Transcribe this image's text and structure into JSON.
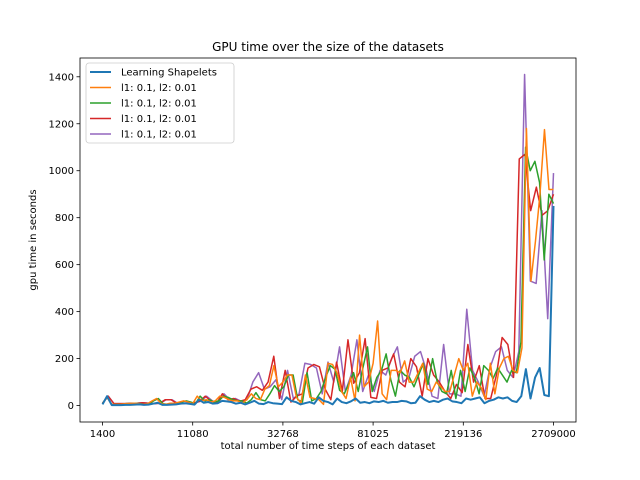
{
  "chart_data": {
    "type": "line",
    "title": "GPU time over the size of the datasets",
    "xlabel": "total number of time steps of each dataset",
    "ylabel": "gpu time in seconds",
    "x_tick_labels": [
      "1400",
      "11080",
      "32768",
      "81025",
      "219136",
      "2709000"
    ],
    "y_ticks": [
      0,
      200,
      400,
      600,
      800,
      1000,
      1200,
      1400
    ],
    "ylim": [
      -70,
      1480
    ],
    "legend_position": "upper-left",
    "grid": false,
    "series": [
      {
        "name": "Learning Shapelets",
        "color": "#1f77b4",
        "values": [
          5,
          40,
          2,
          2,
          2,
          3,
          3,
          4,
          5,
          3,
          4,
          8,
          12,
          3,
          3,
          4,
          5,
          8,
          10,
          7,
          4,
          25,
          12,
          15,
          8,
          10,
          20,
          18,
          15,
          8,
          12,
          5,
          12,
          20,
          8,
          6,
          15,
          10,
          8,
          6,
          35,
          20,
          15,
          5,
          10,
          15,
          8,
          35,
          20,
          15,
          5,
          30,
          15,
          10,
          18,
          30,
          12,
          15,
          10,
          18,
          15,
          20,
          12,
          15,
          15,
          20,
          18,
          10,
          12,
          40,
          25,
          15,
          20,
          15,
          25,
          30,
          18,
          15,
          10,
          30,
          25,
          30,
          35,
          10,
          20,
          25,
          35,
          30,
          35,
          20,
          15,
          40,
          155,
          30,
          120,
          160,
          45,
          40,
          850
        ]
      },
      {
        "name": "l1: 0.1, l2: 0.01",
        "color": "#ff7f0e",
        "values": [
          10,
          35,
          5,
          5,
          5,
          8,
          8,
          10,
          8,
          5,
          8,
          20,
          30,
          8,
          5,
          10,
          10,
          15,
          20,
          15,
          8,
          40,
          20,
          25,
          15,
          20,
          40,
          35,
          25,
          20,
          20,
          10,
          25,
          50,
          30,
          25,
          70,
          85,
          170,
          80,
          100,
          130,
          130,
          35,
          10,
          130,
          35,
          30,
          25,
          5,
          180,
          175,
          140,
          60,
          30,
          120,
          20,
          300,
          80,
          100,
          180,
          360,
          50,
          25,
          150,
          150,
          140,
          190,
          100,
          100,
          140,
          180,
          70,
          60,
          100,
          80,
          60,
          60,
          130,
          200,
          150,
          180,
          40,
          100,
          75,
          25,
          180,
          50,
          160,
          200,
          210,
          150,
          140,
          245,
          1180,
          530,
          700,
          900,
          1175,
          920,
          920
        ]
      },
      {
        "name": "l1: 0.1, l2: 0.01",
        "color": "#2ca02c",
        "values": [
          10,
          35,
          5,
          5,
          5,
          8,
          8,
          10,
          8,
          5,
          8,
          20,
          30,
          8,
          5,
          10,
          10,
          15,
          20,
          15,
          8,
          40,
          20,
          25,
          15,
          20,
          40,
          35,
          25,
          20,
          20,
          10,
          25,
          55,
          25,
          20,
          50,
          85,
          60,
          80,
          130,
          130,
          25,
          15,
          140,
          20,
          30,
          60,
          120,
          170,
          155,
          65,
          50,
          95,
          140,
          60,
          160,
          250,
          60,
          120,
          150,
          220,
          110,
          40,
          150,
          130,
          120,
          80,
          130,
          180,
          90,
          200,
          100,
          60,
          50,
          150,
          30,
          150,
          60,
          160,
          120,
          50,
          170,
          150,
          115,
          160,
          130,
          100,
          150,
          140,
          270,
          1100,
          1000,
          1040,
          950,
          620,
          900,
          860
        ]
      },
      {
        "name": "l1: 0.1, l2: 0.01",
        "color": "#d62728",
        "values": [
          10,
          40,
          8,
          8,
          8,
          10,
          10,
          12,
          10,
          8,
          10,
          25,
          25,
          10,
          8,
          12,
          12,
          18,
          40,
          20,
          10,
          50,
          25,
          30,
          18,
          25,
          70,
          80,
          65,
          100,
          210,
          30,
          150,
          15,
          40,
          50,
          160,
          175,
          165,
          70,
          25,
          185,
          60,
          280,
          95,
          140,
          285,
          35,
          30,
          150,
          160,
          220,
          100,
          80,
          200,
          165,
          40,
          200,
          130,
          100,
          60,
          30,
          90,
          55,
          260,
          100,
          170,
          30,
          30,
          130,
          290,
          260,
          120,
          1050,
          1070,
          830,
          930,
          810,
          830,
          900
        ]
      },
      {
        "name": "l1: 0.1, l2: 0.01",
        "color": "#9467bd",
        "values": [
          10,
          40,
          8,
          8,
          8,
          10,
          10,
          12,
          10,
          8,
          10,
          25,
          25,
          10,
          8,
          12,
          12,
          18,
          40,
          20,
          10,
          50,
          25,
          30,
          18,
          25,
          100,
          140,
          70,
          80,
          110,
          25,
          150,
          30,
          50,
          180,
          175,
          160,
          50,
          185,
          100,
          250,
          60,
          130,
          280,
          60,
          130,
          60,
          150,
          130,
          200,
          250,
          100,
          120,
          210,
          230,
          150,
          40,
          30,
          260,
          50,
          50,
          40,
          410,
          150,
          100,
          40,
          160,
          230,
          250,
          150,
          120,
          230,
          1410,
          530,
          520,
          830,
          370,
          990
        ]
      }
    ]
  }
}
